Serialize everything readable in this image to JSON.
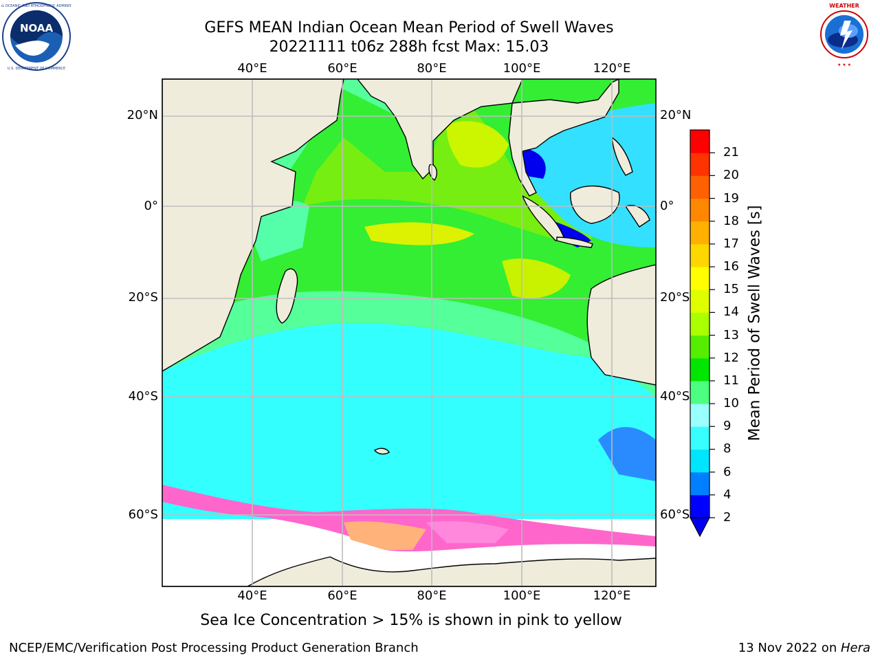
{
  "title": {
    "line1": "GEFS MEAN Indian Ocean Mean Period of Swell Waves",
    "line2": "20221111 t06z 288h fcst   Max: 15.03"
  },
  "logos": {
    "left": {
      "icon": "noaa-logo-icon",
      "text": "NOAA",
      "ring_text": "NATIONAL OCEANIC AND ATMOSPHERIC ADMINISTRATION · U.S. DEPARTMENT OF COMMERCE"
    },
    "right": {
      "icon": "nws-logo-icon",
      "ring_text": "NATIONAL WEATHER SERVICE"
    }
  },
  "map": {
    "lon_labels": [
      "40°E",
      "60°E",
      "80°E",
      "100°E",
      "120°E"
    ],
    "lat_labels": [
      "20°N",
      "0°",
      "20°S",
      "40°S",
      "60°S"
    ],
    "land_color": "#efecdc",
    "ice_colors": [
      "#ff66cc",
      "#ffb27a",
      "#ffff66"
    ]
  },
  "colorbar": {
    "label": "Mean Period of Swell Waves [s]",
    "ticks": [
      "2",
      "4",
      "6",
      "8",
      "9",
      "10",
      "11",
      "12",
      "13",
      "14",
      "15",
      "16",
      "17",
      "18",
      "19",
      "20",
      "21"
    ],
    "colors": [
      "#0000ff",
      "#0080ff",
      "#00e5ff",
      "#38ffff",
      "#99ffff",
      "#4dff80",
      "#00e600",
      "#55ee00",
      "#aaff00",
      "#dfff00",
      "#ffff00",
      "#ffd700",
      "#ffb000",
      "#ff8800",
      "#ff6000",
      "#ff3300",
      "#ff0000"
    ],
    "extend_color": "#0000ff"
  },
  "caption": "Sea Ice Concentration > 15% is shown in pink to yellow",
  "footer": {
    "left": "NCEP/EMC/Verification Post Processing Product Generation Branch",
    "right_prefix": "13 Nov 2022 on ",
    "right_host": "Hera"
  }
}
